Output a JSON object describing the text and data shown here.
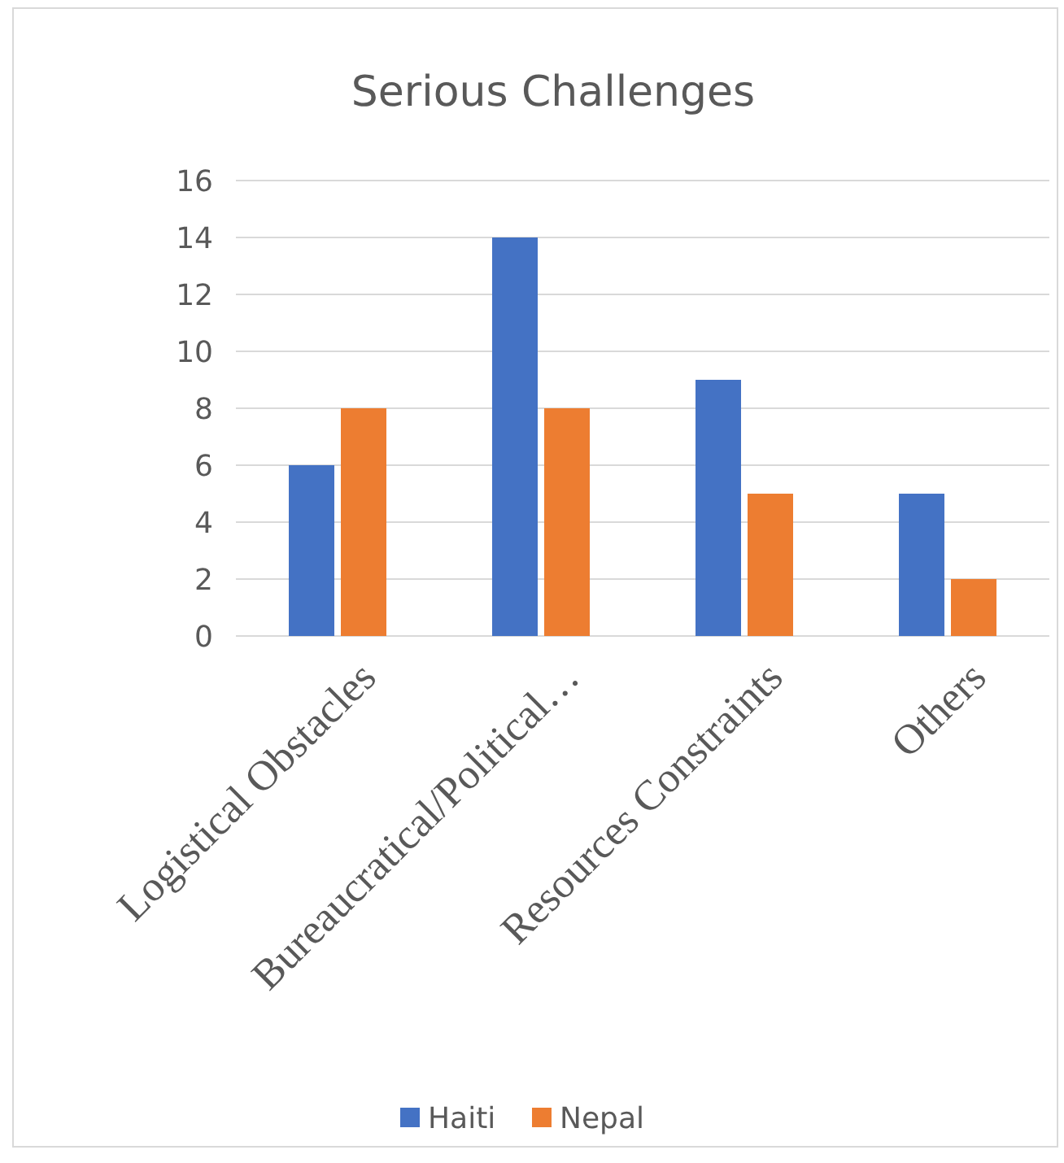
{
  "chart_data": {
    "type": "bar",
    "title": "Serious Challenges",
    "categories": [
      "Logistical Obstacles",
      "Bureaucratical/Political…",
      "Resources Constraints",
      "Others"
    ],
    "series": [
      {
        "name": "Haiti",
        "color": "#4472c4",
        "values": [
          6,
          14,
          9,
          5
        ]
      },
      {
        "name": "Nepal",
        "color": "#ed7d31",
        "values": [
          8,
          8,
          5,
          2
        ]
      }
    ],
    "ylim": [
      0,
      16
    ],
    "yticks": [
      0,
      2,
      4,
      6,
      8,
      10,
      12,
      14,
      16
    ],
    "grid": "y",
    "legend": "bottom"
  }
}
